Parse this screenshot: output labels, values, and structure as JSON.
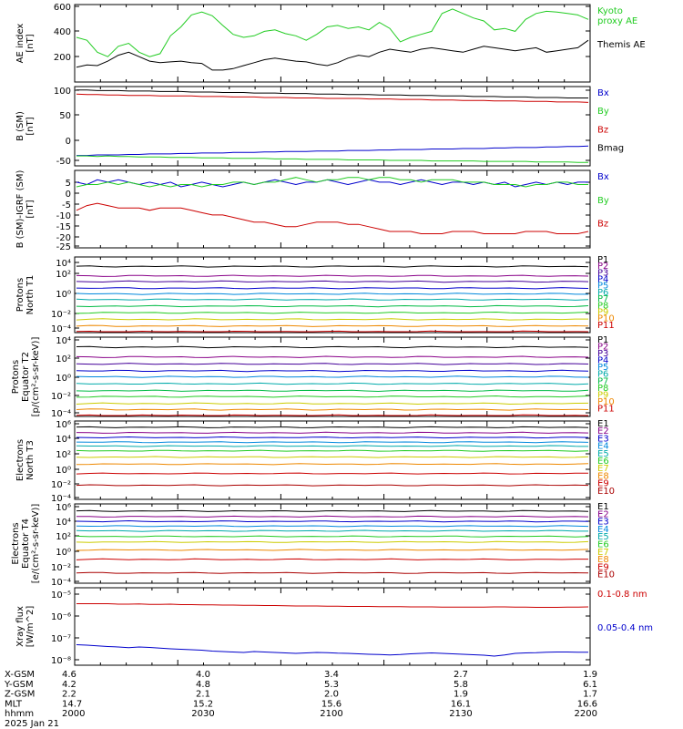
{
  "chart_data": [
    {
      "type": "line",
      "ylabel": "AE index\n[nT]",
      "yticks": [
        "600",
        "400",
        "200"
      ],
      "ylim": [
        100,
        620
      ],
      "log": false,
      "series": [
        {
          "name": "Kyoto\nproxy AE",
          "color": "#22cc22",
          "values": [
            400,
            380,
            300,
            270,
            340,
            360,
            300,
            270,
            290,
            410,
            470,
            550,
            570,
            545,
            480,
            420,
            400,
            410,
            440,
            450,
            425,
            410,
            380,
            420,
            470,
            480,
            460,
            470,
            450,
            500,
            460,
            370,
            400,
            420,
            440,
            560,
            590,
            560,
            530,
            510,
            450,
            460,
            440,
            520,
            560,
            575,
            570,
            560,
            550,
            520
          ]
        },
        {
          "name": "Themis AE",
          "color": "#000000",
          "values": [
            200,
            215,
            210,
            240,
            280,
            300,
            270,
            240,
            230,
            235,
            240,
            230,
            225,
            180,
            180,
            190,
            210,
            230,
            250,
            260,
            250,
            240,
            235,
            220,
            210,
            230,
            260,
            280,
            270,
            300,
            320,
            310,
            300,
            320,
            330,
            320,
            310,
            300,
            320,
            340,
            330,
            320,
            310,
            320,
            330,
            300,
            310,
            320,
            330,
            380
          ]
        }
      ]
    },
    {
      "type": "line",
      "ylabel": "B (SM)\n[nT]",
      "yticks": [
        "100",
        "50",
        "0",
        "-50"
      ],
      "ylim": [
        -55,
        105
      ],
      "log": false,
      "series": [
        {
          "name": "Bx",
          "color": "#0000cc",
          "values": [
            -34,
            -34,
            -33,
            -33,
            -33,
            -32,
            -32,
            -31,
            -31,
            -31,
            -30,
            -30,
            -29,
            -29,
            -29,
            -28,
            -28,
            -28,
            -27,
            -27,
            -26,
            -26,
            -26,
            -25,
            -25,
            -25,
            -24,
            -24,
            -24,
            -23,
            -23,
            -22,
            -22,
            -22,
            -21,
            -21,
            -21,
            -20,
            -20,
            -20,
            -19,
            -19,
            -18,
            -18,
            -18,
            -17,
            -17,
            -16,
            -16,
            -15
          ]
        },
        {
          "name": "By",
          "color": "#22cc22",
          "values": [
            -35,
            -35,
            -36,
            -35,
            -36,
            -36,
            -37,
            -37,
            -37,
            -38,
            -38,
            -38,
            -39,
            -39,
            -39,
            -40,
            -40,
            -40,
            -40,
            -41,
            -41,
            -41,
            -42,
            -42,
            -42,
            -42,
            -43,
            -43,
            -43,
            -43,
            -44,
            -44,
            -44,
            -44,
            -45,
            -45,
            -45,
            -45,
            -45,
            -46,
            -46,
            -46,
            -46,
            -46,
            -47,
            -47,
            -47,
            -47,
            -48,
            -48
          ]
        },
        {
          "name": "Bz",
          "color": "#cc0000",
          "values": [
            90,
            89,
            89,
            88,
            88,
            87,
            87,
            87,
            86,
            86,
            86,
            86,
            85,
            85,
            85,
            84,
            84,
            84,
            83,
            83,
            83,
            82,
            82,
            82,
            81,
            81,
            81,
            81,
            80,
            80,
            80,
            79,
            79,
            79,
            78,
            78,
            78,
            77,
            77,
            77,
            76,
            76,
            76,
            75,
            75,
            75,
            74,
            74,
            74,
            73
          ]
        },
        {
          "name": "Bmag",
          "color": "#000000",
          "values": [
            98,
            98,
            97,
            97,
            97,
            96,
            96,
            96,
            95,
            95,
            95,
            94,
            94,
            94,
            93,
            93,
            93,
            92,
            92,
            92,
            91,
            91,
            91,
            90,
            90,
            90,
            89,
            89,
            89,
            88,
            88,
            88,
            87,
            87,
            87,
            86,
            86,
            86,
            85,
            85,
            85,
            84,
            84,
            84,
            83,
            83,
            83,
            82,
            82,
            82
          ]
        }
      ]
    },
    {
      "type": "line",
      "ylabel": "B (SM)-IGRF (SM)\n[nT]",
      "yticks": [
        "5",
        "0",
        "-5",
        "-10",
        "-15",
        "-20",
        "-25"
      ],
      "ylim": [
        -26,
        7
      ],
      "log": false,
      "series": [
        {
          "name": "Bx",
          "color": "#0000cc",
          "values": [
            2,
            1,
            3,
            2,
            3,
            2,
            1,
            2,
            1,
            2,
            0,
            1,
            2,
            1,
            0,
            1,
            2,
            1,
            2,
            3,
            2,
            1,
            2,
            2,
            3,
            2,
            1,
            2,
            3,
            2,
            2,
            1,
            2,
            3,
            2,
            1,
            2,
            2,
            1,
            2,
            1,
            2,
            0,
            1,
            2,
            1,
            2,
            1,
            2,
            2
          ]
        },
        {
          "name": "By",
          "color": "#22cc22",
          "values": [
            0,
            1,
            1,
            2,
            1,
            2,
            1,
            0,
            1,
            0,
            1,
            1,
            0,
            1,
            1,
            2,
            2,
            1,
            2,
            2,
            3,
            4,
            3,
            2,
            3,
            3,
            4,
            4,
            3,
            4,
            4,
            3,
            3,
            2,
            3,
            3,
            3,
            2,
            2,
            2,
            1,
            1,
            1,
            0,
            1,
            1,
            2,
            2,
            1,
            1
          ]
        },
        {
          "name": "Bz",
          "color": "#cc0000",
          "values": [
            -10,
            -8,
            -7,
            -8,
            -9,
            -9,
            -9,
            -10,
            -9,
            -9,
            -9,
            -10,
            -11,
            -12,
            -12,
            -13,
            -14,
            -15,
            -15,
            -16,
            -17,
            -17,
            -16,
            -15,
            -15,
            -15,
            -16,
            -16,
            -17,
            -18,
            -19,
            -19,
            -19,
            -20,
            -20,
            -20,
            -19,
            -19,
            -19,
            -20,
            -20,
            -20,
            -20,
            -19,
            -19,
            -19,
            -20,
            -20,
            -20,
            -19
          ]
        }
      ]
    },
    {
      "type": "line",
      "ylabel": "Protons\nNorth T1",
      "yticks": [
        "10⁴",
        "10²",
        "10⁰",
        "10⁻²",
        "10⁻⁴"
      ],
      "ylim": [
        -4,
        4
      ],
      "log": true,
      "series": [
        {
          "name": "P1",
          "color": "#000000",
          "level": 3.0
        },
        {
          "name": "P2",
          "color": "#880088",
          "level": 2.0
        },
        {
          "name": "P3",
          "color": "#440099",
          "level": 1.4
        },
        {
          "name": "P4",
          "color": "#0000cc",
          "level": 0.7
        },
        {
          "name": "P5",
          "color": "#0088dd",
          "level": 0.1
        },
        {
          "name": "P6",
          "color": "#00aaaa",
          "level": -0.5
        },
        {
          "name": "P7",
          "color": "#00bb44",
          "level": -1.2
        },
        {
          "name": "P8",
          "color": "#22cc22",
          "level": -1.9
        },
        {
          "name": "P9",
          "color": "#cccc00",
          "level": -2.6
        },
        {
          "name": "P10",
          "color": "#ee8800",
          "level": -3.3
        },
        {
          "name": "P11",
          "color": "#cc0000",
          "level": -3.9
        }
      ]
    },
    {
      "type": "line",
      "ylabel": "Protons\nEquator T2\n[p/(cm²-s-sr-keV)]",
      "yticks": [
        "10⁴",
        "10²",
        "10⁰",
        "10⁻²",
        "10⁻⁴"
      ],
      "ylim": [
        -4,
        4
      ],
      "log": true,
      "series": [
        {
          "name": "P1",
          "color": "#000000",
          "level": 3.0
        },
        {
          "name": "P2",
          "color": "#880088",
          "level": 2.0
        },
        {
          "name": "P3",
          "color": "#440099",
          "level": 1.3
        },
        {
          "name": "P4",
          "color": "#0000cc",
          "level": 0.6
        },
        {
          "name": "P5",
          "color": "#0088dd",
          "level": 0.0
        },
        {
          "name": "P6",
          "color": "#00aaaa",
          "level": -0.7
        },
        {
          "name": "P7",
          "color": "#00bb44",
          "level": -1.4
        },
        {
          "name": "P8",
          "color": "#22cc22",
          "level": -2.0
        },
        {
          "name": "P9",
          "color": "#cccc00",
          "level": -2.7
        },
        {
          "name": "P10",
          "color": "#ee8800",
          "level": -3.3
        },
        {
          "name": "P11",
          "color": "#cc0000",
          "level": -3.9
        }
      ]
    },
    {
      "type": "line",
      "ylabel": "Electrons\nNorth T3",
      "yticks": [
        "10⁶",
        "10⁴",
        "10²",
        "10⁰",
        "10⁻²",
        "10⁻⁴"
      ],
      "ylim": [
        -4,
        6
      ],
      "log": true,
      "series": [
        {
          "name": "E1",
          "color": "#000000",
          "level": 5.2
        },
        {
          "name": "E2",
          "color": "#880088",
          "level": 4.5
        },
        {
          "name": "E3",
          "color": "#0000cc",
          "level": 3.9
        },
        {
          "name": "E4",
          "color": "#0088dd",
          "level": 3.3
        },
        {
          "name": "E5",
          "color": "#00aaaa",
          "level": 2.8
        },
        {
          "name": "E6",
          "color": "#22cc22",
          "level": 2.2
        },
        {
          "name": "E7",
          "color": "#cccc00",
          "level": 1.4
        },
        {
          "name": "E8",
          "color": "#ee8800",
          "level": 0.5
        },
        {
          "name": "E9",
          "color": "#cc0000",
          "level": -0.7
        },
        {
          "name": "E10",
          "color": "#aa0000",
          "level": -2.2
        }
      ]
    },
    {
      "type": "line",
      "ylabel": "Electrons\nEquator T4\n[e/(cm²-s-sr-keV)]",
      "yticks": [
        "10⁶",
        "10⁴",
        "10²",
        "10⁰",
        "10⁻²",
        "10⁻⁴"
      ],
      "ylim": [
        -4,
        6
      ],
      "log": true,
      "series": [
        {
          "name": "E1",
          "color": "#000000",
          "level": 5.1
        },
        {
          "name": "E2",
          "color": "#880088",
          "level": 4.4
        },
        {
          "name": "E3",
          "color": "#0000cc",
          "level": 3.8
        },
        {
          "name": "E4",
          "color": "#0088dd",
          "level": 3.2
        },
        {
          "name": "E5",
          "color": "#00aaaa",
          "level": 2.6
        },
        {
          "name": "E6",
          "color": "#22cc22",
          "level": 1.9
        },
        {
          "name": "E7",
          "color": "#cccc00",
          "level": 1.2
        },
        {
          "name": "E8",
          "color": "#ee8800",
          "level": 0.2
        },
        {
          "name": "E9",
          "color": "#cc0000",
          "level": -1.0
        },
        {
          "name": "E10",
          "color": "#aa0000",
          "level": -2.7
        }
      ]
    },
    {
      "type": "line",
      "ylabel": "Xray flux\n[W/m^2]",
      "yticks": [
        "10⁻⁵",
        "10⁻⁶",
        "10⁻⁷",
        "10⁻⁸"
      ],
      "ylim": [
        -8.4,
        -5
      ],
      "log": true,
      "series": [
        {
          "name": "0.1-0.8 nm",
          "color": "#cc0000",
          "values": [
            -5.7,
            -5.7,
            -5.7,
            -5.7,
            -5.72,
            -5.72,
            -5.71,
            -5.73,
            -5.73,
            -5.72,
            -5.74,
            -5.74,
            -5.75,
            -5.75,
            -5.76,
            -5.76,
            -5.77,
            -5.77,
            -5.78,
            -5.78,
            -5.79,
            -5.8,
            -5.8,
            -5.8,
            -5.81,
            -5.81,
            -5.82,
            -5.82,
            -5.82,
            -5.83,
            -5.83,
            -5.83,
            -5.84,
            -5.84,
            -5.84,
            -5.85,
            -5.85,
            -5.85,
            -5.85,
            -5.85,
            -5.84,
            -5.84,
            -5.85,
            -5.85,
            -5.86,
            -5.86,
            -5.86,
            -5.85,
            -5.85,
            -5.84
          ]
        },
        {
          "name": "0.05-0.4 nm",
          "color": "#0000cc",
          "values": [
            -7.5,
            -7.52,
            -7.55,
            -7.58,
            -7.6,
            -7.63,
            -7.6,
            -7.62,
            -7.65,
            -7.68,
            -7.7,
            -7.72,
            -7.74,
            -7.78,
            -7.8,
            -7.82,
            -7.84,
            -7.8,
            -7.82,
            -7.84,
            -7.86,
            -7.88,
            -7.86,
            -7.84,
            -7.85,
            -7.87,
            -7.88,
            -7.9,
            -7.92,
            -7.93,
            -7.95,
            -7.93,
            -7.9,
            -7.88,
            -7.86,
            -7.88,
            -7.9,
            -7.92,
            -7.94,
            -7.96,
            -8.0,
            -7.95,
            -7.88,
            -7.86,
            -7.85,
            -7.83,
            -7.82,
            -7.82,
            -7.83,
            -7.83
          ]
        }
      ]
    }
  ],
  "ephemeris": {
    "row_labels": [
      "X-GSM",
      "Y-GSM",
      "Z-GSM",
      "MLT",
      "hhmm",
      "2025 Jan 21"
    ],
    "columns": [
      {
        "x_gsm": "4.6",
        "y_gsm": "4.2",
        "z_gsm": "2.2",
        "mlt": "14.7",
        "hhmm": "2000"
      },
      {
        "x_gsm": "4.0",
        "y_gsm": "4.8",
        "z_gsm": "2.1",
        "mlt": "15.2",
        "hhmm": "2030"
      },
      {
        "x_gsm": "3.4",
        "y_gsm": "5.3",
        "z_gsm": "2.0",
        "mlt": "15.6",
        "hhmm": "2100"
      },
      {
        "x_gsm": "2.7",
        "y_gsm": "5.8",
        "z_gsm": "1.9",
        "mlt": "16.1",
        "hhmm": "2130"
      },
      {
        "x_gsm": "1.9",
        "y_gsm": "6.1",
        "z_gsm": "1.7",
        "mlt": "16.6",
        "hhmm": "2200"
      }
    ]
  }
}
